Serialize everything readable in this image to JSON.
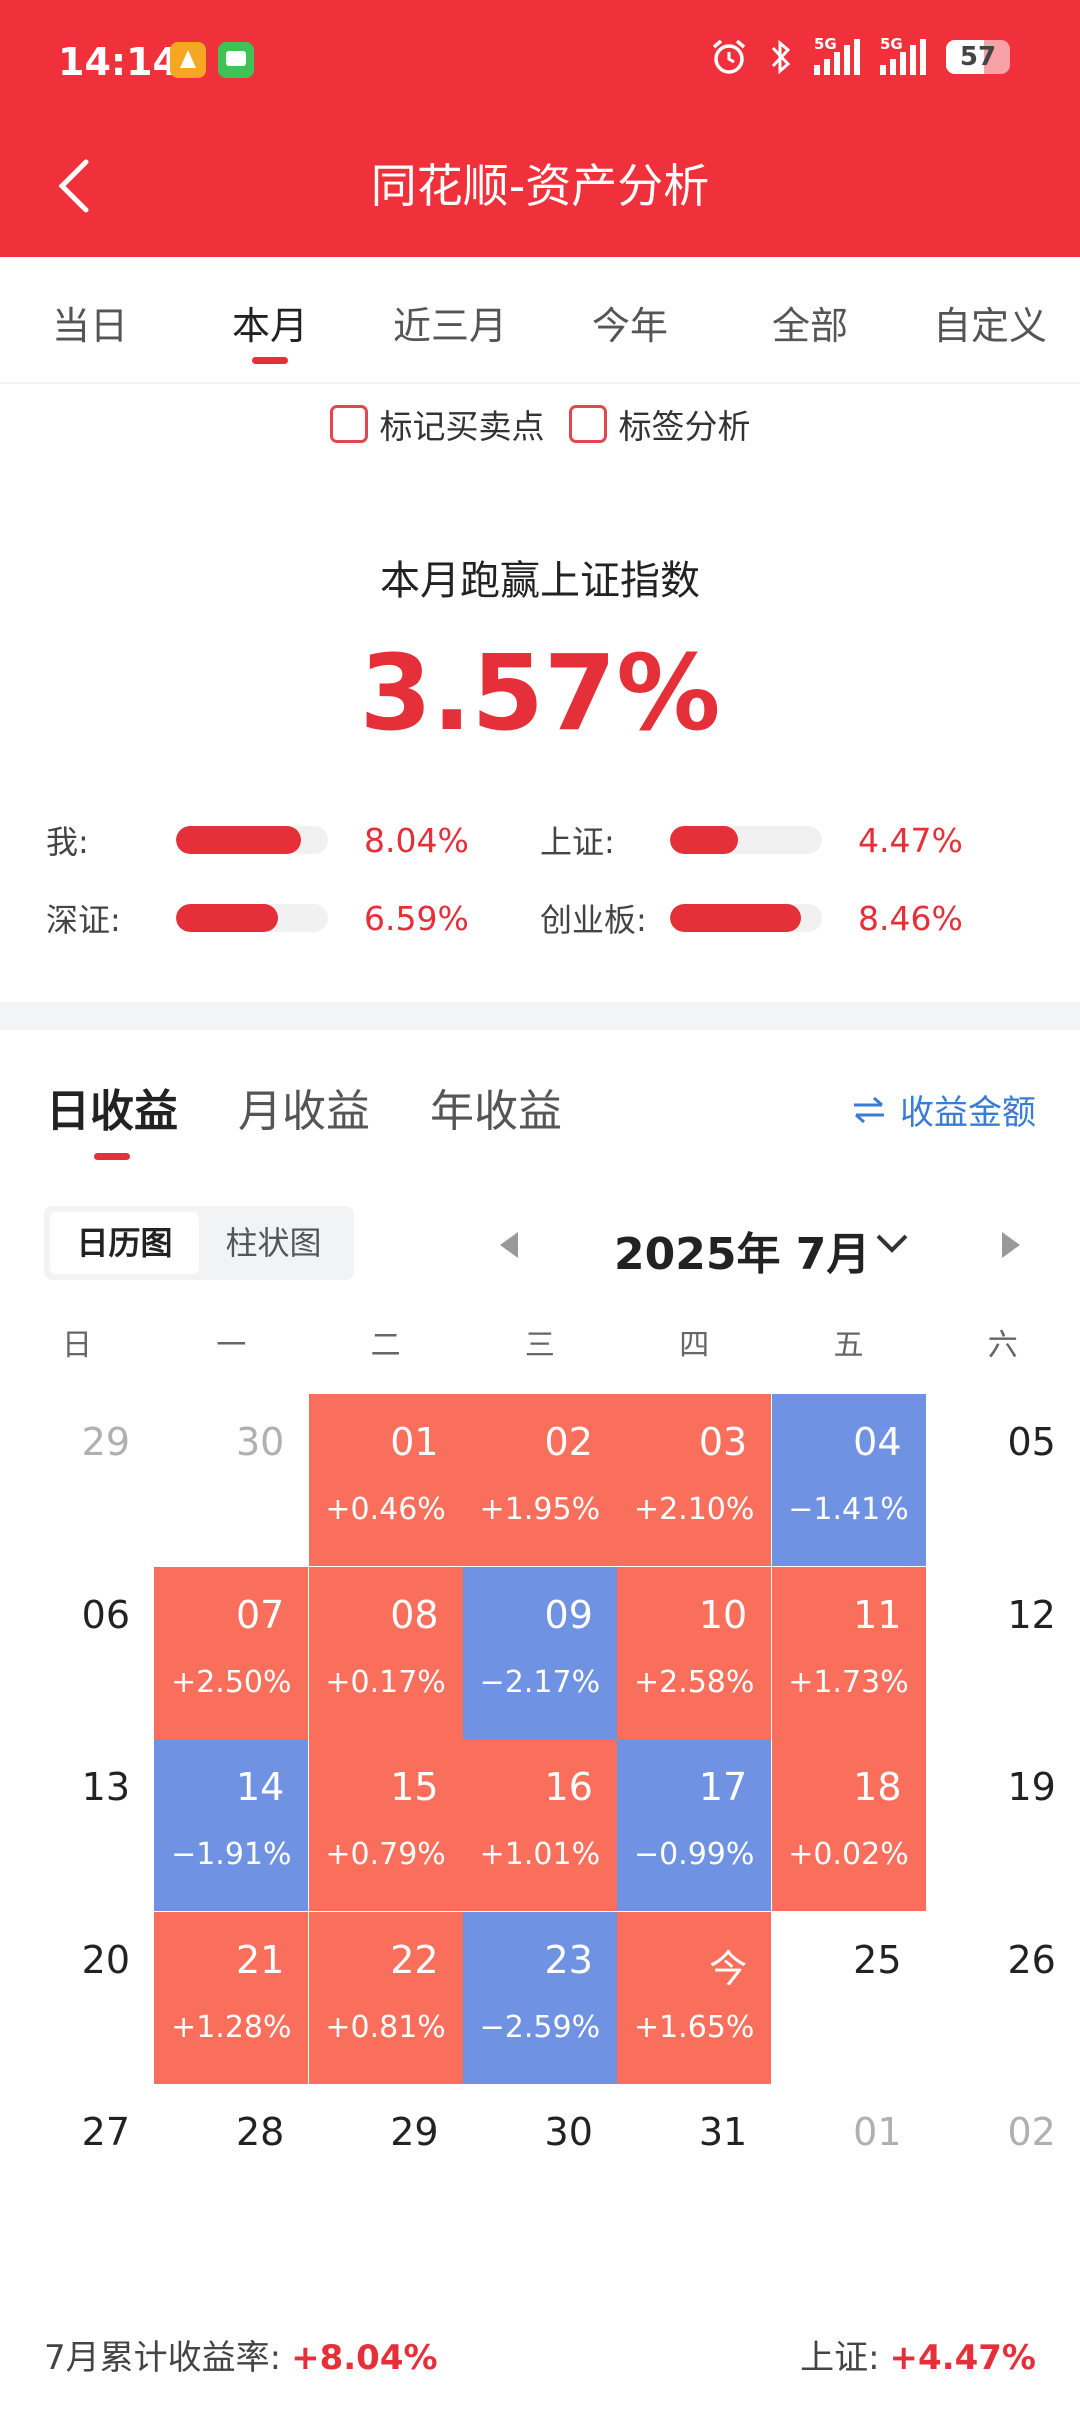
{
  "status_bar": {
    "time": "14:14",
    "signal1": "5G",
    "signal2": "5G",
    "battery": "57"
  },
  "header": {
    "title": "同花顺-资产分析"
  },
  "period_tabs": [
    "当日",
    "本月",
    "近三月",
    "今年",
    "全部",
    "自定义"
  ],
  "active_period": "本月",
  "options": {
    "mark_trades": "标记买卖点",
    "tag_analysis": "标签分析"
  },
  "summary": {
    "title": "本月跑赢上证指数",
    "value": "3.57%"
  },
  "comparisons": [
    {
      "label": "我:",
      "value": "8.04%",
      "fraction": 0.82
    },
    {
      "label": "上证:",
      "value": "4.47%",
      "fraction": 0.45
    },
    {
      "label": "深证:",
      "value": "6.59%",
      "fraction": 0.67
    },
    {
      "label": "创业板:",
      "value": "8.46%",
      "fraction": 0.86
    }
  ],
  "profit_tabs": [
    "日收益",
    "月收益",
    "年收益"
  ],
  "amount_toggle": "收益金额",
  "view_switch": [
    "日历图",
    "柱状图"
  ],
  "month_label": "2025年 7月",
  "weekdays": [
    "日",
    "一",
    "二",
    "三",
    "四",
    "五",
    "六"
  ],
  "calendar": [
    [
      {
        "day": "29",
        "muted": true
      },
      {
        "day": "30",
        "muted": true
      },
      {
        "day": "01",
        "pct": "+0.46%",
        "trend": "up"
      },
      {
        "day": "02",
        "pct": "+1.95%",
        "trend": "up"
      },
      {
        "day": "03",
        "pct": "+2.10%",
        "trend": "up"
      },
      {
        "day": "04",
        "pct": "−1.41%",
        "trend": "down"
      },
      {
        "day": "05"
      }
    ],
    [
      {
        "day": "06"
      },
      {
        "day": "07",
        "pct": "+2.50%",
        "trend": "up"
      },
      {
        "day": "08",
        "pct": "+0.17%",
        "trend": "up"
      },
      {
        "day": "09",
        "pct": "−2.17%",
        "trend": "down"
      },
      {
        "day": "10",
        "pct": "+2.58%",
        "trend": "up"
      },
      {
        "day": "11",
        "pct": "+1.73%",
        "trend": "up"
      },
      {
        "day": "12"
      }
    ],
    [
      {
        "day": "13"
      },
      {
        "day": "14",
        "pct": "−1.91%",
        "trend": "down"
      },
      {
        "day": "15",
        "pct": "+0.79%",
        "trend": "up"
      },
      {
        "day": "16",
        "pct": "+1.01%",
        "trend": "up"
      },
      {
        "day": "17",
        "pct": "−0.99%",
        "trend": "down"
      },
      {
        "day": "18",
        "pct": "+0.02%",
        "trend": "up"
      },
      {
        "day": "19"
      }
    ],
    [
      {
        "day": "20"
      },
      {
        "day": "21",
        "pct": "+1.28%",
        "trend": "up"
      },
      {
        "day": "22",
        "pct": "+0.81%",
        "trend": "up"
      },
      {
        "day": "23",
        "pct": "−2.59%",
        "trend": "down"
      },
      {
        "day": "今",
        "pct": "+1.65%",
        "trend": "up"
      },
      {
        "day": "25"
      },
      {
        "day": "26"
      }
    ],
    [
      {
        "day": "27"
      },
      {
        "day": "28"
      },
      {
        "day": "29"
      },
      {
        "day": "30"
      },
      {
        "day": "31"
      },
      {
        "day": "01",
        "muted": true
      },
      {
        "day": "02",
        "muted": true
      }
    ]
  ],
  "footer": {
    "cum_label": "7月累计收益率:",
    "cum_value": "+8.04%",
    "index_label": "上证:",
    "index_value": "+4.47%"
  },
  "colors": {
    "brand_red": "#f0303a",
    "up": "#fa6f5c",
    "down": "#7092e2",
    "link_blue": "#3a7bd5"
  }
}
